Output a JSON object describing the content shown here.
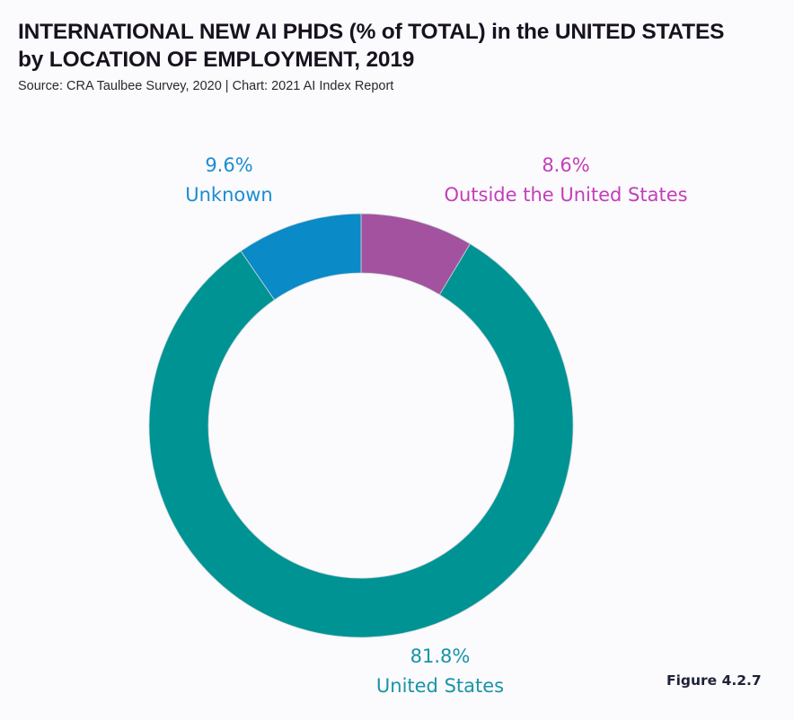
{
  "chart_data": {
    "type": "pie",
    "variant": "donut",
    "title": "INTERNATIONAL NEW AI PHDS (% of TOTAL) in the UNITED STATES by LOCATION OF EMPLOYMENT, 2019",
    "title_lines": [
      "INTERNATIONAL NEW AI PHDS (% of TOTAL) in the UNITED STATES",
      "by LOCATION OF EMPLOYMENT, 2019"
    ],
    "subtitle": "Source: CRA Taulbee Survey, 2020 | Chart: 2021 AI Index Report",
    "unit": "%",
    "slices": [
      {
        "label": "Outside the United States",
        "value": 8.6,
        "value_label": "8.6%",
        "color": "#a3529f"
      },
      {
        "label": "United States",
        "value": 81.8,
        "value_label": "81.8%",
        "color": "#009393"
      },
      {
        "label": "Unknown",
        "value": 9.6,
        "value_label": "9.6%",
        "color": "#0a8ac7"
      }
    ],
    "start": "12 o'clock",
    "direction": "clockwise"
  },
  "figure_label": "Figure 4.2.7"
}
